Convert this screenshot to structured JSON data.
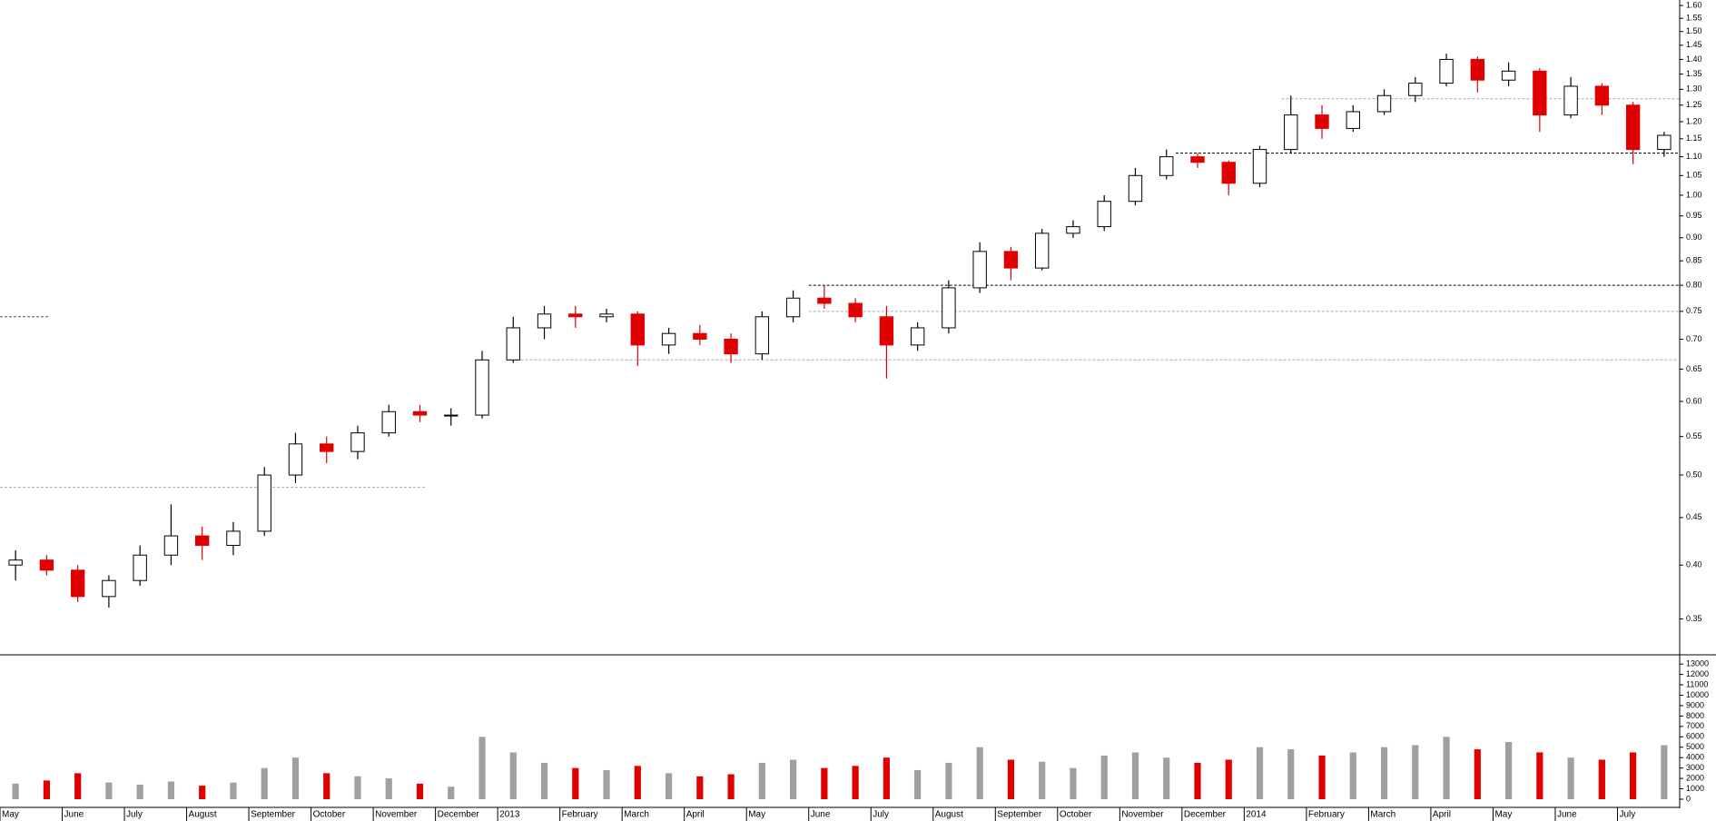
{
  "chart_data": {
    "type": "candlestick",
    "log_y": true,
    "up_color": "#000000",
    "down_color": "#e00000",
    "volume_up_color": "#a0a0a0",
    "volume_down_color": "#e00000",
    "xlim": [
      0,
      54
    ],
    "xticks": [
      {
        "value": 0,
        "label": "May"
      },
      {
        "value": 2,
        "label": "June"
      },
      {
        "value": 4,
        "label": "July"
      },
      {
        "value": 6,
        "label": "August"
      },
      {
        "value": 8,
        "label": "September"
      },
      {
        "value": 10,
        "label": "October"
      },
      {
        "value": 12,
        "label": "November"
      },
      {
        "value": 14,
        "label": "December"
      },
      {
        "value": 16,
        "label": "2013"
      },
      {
        "value": 18,
        "label": "February"
      },
      {
        "value": 20,
        "label": "March"
      },
      {
        "value": 22,
        "label": "April"
      },
      {
        "value": 24,
        "label": "May"
      },
      {
        "value": 26,
        "label": "June"
      },
      {
        "value": 28,
        "label": "July"
      },
      {
        "value": 30,
        "label": "August"
      },
      {
        "value": 32,
        "label": "September"
      },
      {
        "value": 34,
        "label": "October"
      },
      {
        "value": 36,
        "label": "November"
      },
      {
        "value": 38,
        "label": "December"
      },
      {
        "value": 40,
        "label": "2014"
      },
      {
        "value": 42,
        "label": "February"
      },
      {
        "value": 44,
        "label": "March"
      },
      {
        "value": 46,
        "label": "April"
      },
      {
        "value": 48,
        "label": "May"
      },
      {
        "value": 50,
        "label": "June"
      },
      {
        "value": 52,
        "label": "July"
      }
    ],
    "ylim": [
      0.321,
      1.622
    ],
    "yticks": [
      {
        "value": 0.35,
        "label": "0.35"
      },
      {
        "value": 0.4,
        "label": "0.40"
      },
      {
        "value": 0.45,
        "label": "0.45"
      },
      {
        "value": 0.5,
        "label": "0.50"
      },
      {
        "value": 0.55,
        "label": "0.55"
      },
      {
        "value": 0.6,
        "label": "0.60"
      },
      {
        "value": 0.65,
        "label": "0.65"
      },
      {
        "value": 0.7,
        "label": "0.70"
      },
      {
        "value": 0.75,
        "label": "0.75"
      },
      {
        "value": 0.8,
        "label": "0.80"
      },
      {
        "value": 0.85,
        "label": "0.85"
      },
      {
        "value": 0.9,
        "label": "0.90"
      },
      {
        "value": 0.95,
        "label": "0.95"
      },
      {
        "value": 1.0,
        "label": "1.00"
      },
      {
        "value": 1.05,
        "label": "1.05"
      },
      {
        "value": 1.1,
        "label": "1.10"
      },
      {
        "value": 1.15,
        "label": "1.15"
      },
      {
        "value": 1.2,
        "label": "1.20"
      },
      {
        "value": 1.25,
        "label": "1.25"
      },
      {
        "value": 1.3,
        "label": "1.30"
      },
      {
        "value": 1.35,
        "label": "1.35"
      },
      {
        "value": 1.4,
        "label": "1.40"
      },
      {
        "value": 1.45,
        "label": "1.45"
      },
      {
        "value": 1.5,
        "label": "1.50"
      },
      {
        "value": 1.55,
        "label": "1.55"
      },
      {
        "value": 1.6,
        "label": "1.60"
      }
    ],
    "levels": [
      {
        "value": 1.11,
        "from": 37.8,
        "to": 54,
        "color": "#000000"
      },
      {
        "value": 0.8,
        "from": 26,
        "to": 54,
        "color": "#000000"
      },
      {
        "value": 1.27,
        "from": 41.2,
        "to": 54,
        "color": "#aaaaaa"
      },
      {
        "value": 0.75,
        "from": 26,
        "to": 54,
        "color": "#aaaaaa"
      },
      {
        "value": 0.665,
        "from": 16.3,
        "to": 54,
        "color": "#aaaaaa"
      },
      {
        "value": 0.485,
        "from": 0,
        "to": 13.7,
        "color": "#aaaaaa"
      },
      {
        "value": 0.74,
        "from": 0,
        "to": 1.6,
        "color": "#555555"
      }
    ],
    "open": [
      0.4,
      0.405,
      0.395,
      0.37,
      0.385,
      0.41,
      0.43,
      0.42,
      0.435,
      0.5,
      0.54,
      0.53,
      0.555,
      0.585,
      0.58,
      0.58,
      0.665,
      0.72,
      0.745,
      0.74,
      0.745,
      0.69,
      0.71,
      0.7,
      0.675,
      0.74,
      0.775,
      0.765,
      0.74,
      0.69,
      0.72,
      0.795,
      0.87,
      0.835,
      0.91,
      0.925,
      0.985,
      1.05,
      1.1,
      1.085,
      1.03,
      1.12,
      1.22,
      1.18,
      1.23,
      1.28,
      1.32,
      1.4,
      1.33,
      1.36,
      1.22,
      1.31,
      1.25,
      1.12
    ],
    "high": [
      0.415,
      0.41,
      0.4,
      0.39,
      0.42,
      0.465,
      0.44,
      0.445,
      0.51,
      0.555,
      0.55,
      0.565,
      0.595,
      0.595,
      0.59,
      0.68,
      0.74,
      0.76,
      0.76,
      0.755,
      0.75,
      0.72,
      0.725,
      0.71,
      0.75,
      0.79,
      0.8,
      0.775,
      0.76,
      0.73,
      0.81,
      0.89,
      0.88,
      0.92,
      0.94,
      1.0,
      1.07,
      1.12,
      1.11,
      1.09,
      1.13,
      1.28,
      1.25,
      1.25,
      1.3,
      1.34,
      1.42,
      1.41,
      1.39,
      1.37,
      1.34,
      1.32,
      1.26,
      1.17
    ],
    "low": [
      0.385,
      0.39,
      0.365,
      0.36,
      0.38,
      0.4,
      0.405,
      0.41,
      0.43,
      0.49,
      0.515,
      0.52,
      0.55,
      0.57,
      0.565,
      0.575,
      0.66,
      0.7,
      0.72,
      0.73,
      0.655,
      0.675,
      0.69,
      0.66,
      0.665,
      0.73,
      0.755,
      0.73,
      0.635,
      0.68,
      0.71,
      0.785,
      0.81,
      0.83,
      0.9,
      0.915,
      0.975,
      1.04,
      1.07,
      1.0,
      1.02,
      1.11,
      1.15,
      1.17,
      1.22,
      1.26,
      1.31,
      1.29,
      1.31,
      1.17,
      1.21,
      1.22,
      1.08,
      1.1
    ],
    "close": [
      0.405,
      0.395,
      0.37,
      0.385,
      0.41,
      0.43,
      0.42,
      0.435,
      0.5,
      0.54,
      0.53,
      0.555,
      0.585,
      0.58,
      0.58,
      0.665,
      0.72,
      0.745,
      0.74,
      0.745,
      0.69,
      0.71,
      0.7,
      0.675,
      0.74,
      0.775,
      0.765,
      0.74,
      0.69,
      0.72,
      0.795,
      0.87,
      0.835,
      0.91,
      0.925,
      0.985,
      1.05,
      1.1,
      1.085,
      1.03,
      1.12,
      1.22,
      1.18,
      1.23,
      1.28,
      1.32,
      1.4,
      1.33,
      1.36,
      1.22,
      1.31,
      1.25,
      1.12,
      1.16
    ],
    "volume": {
      "ylim": [
        0,
        13800
      ],
      "yticks": [
        0,
        1000,
        2000,
        3000,
        4000,
        5000,
        6000,
        7000,
        8000,
        9000,
        10000,
        11000,
        12000,
        13000
      ],
      "values": [
        1500,
        1800,
        2500,
        1600,
        1400,
        1700,
        1300,
        1600,
        3000,
        4000,
        2500,
        2200,
        2000,
        1500,
        1200,
        6000,
        4500,
        3500,
        3000,
        2800,
        3200,
        2500,
        2200,
        2400,
        3500,
        3800,
        3000,
        3200,
        4000,
        2800,
        3500,
        5000,
        3800,
        3600,
        3000,
        4200,
        4500,
        4000,
        3500,
        3800,
        5000,
        4800,
        4200,
        4500,
        5000,
        5200,
        6000,
        4800,
        5500,
        4500,
        4000,
        3800,
        4500,
        5200
      ]
    }
  }
}
